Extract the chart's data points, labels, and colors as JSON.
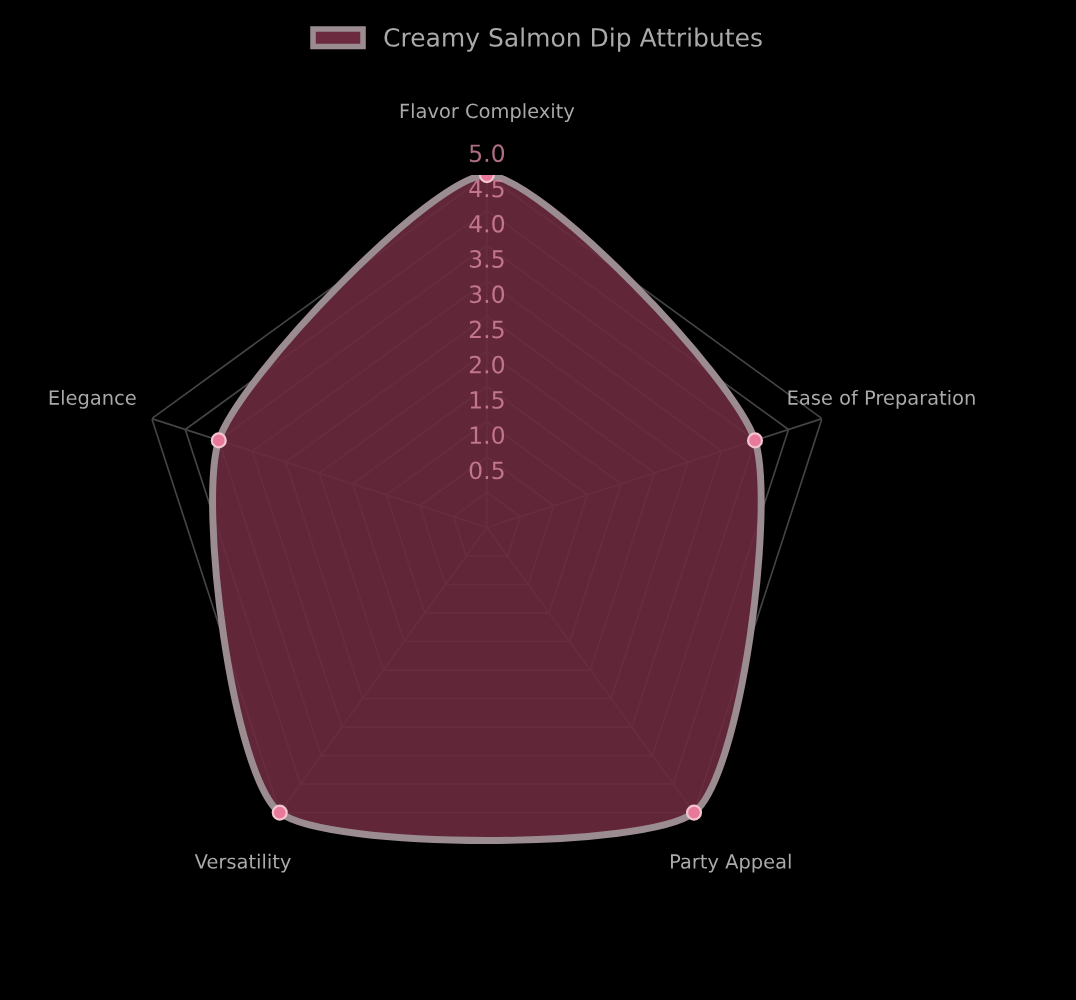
{
  "chart_data": {
    "type": "radar",
    "categories": [
      "Flavor Complexity",
      "Ease of Preparation",
      "Party Appeal",
      "Versatility",
      "Elegance"
    ],
    "series": [
      {
        "name": "Creamy Salmon Dip Attributes",
        "color": "#6b2a3d",
        "values": [
          5,
          4,
          5,
          5,
          4
        ]
      }
    ],
    "ylim": [
      0,
      5
    ],
    "yticks": [
      0.5,
      {
        "value": 1,
        "label": "1.0"
      },
      1.5,
      {
        "value": 2,
        "label": "2.0"
      },
      2.5,
      {
        "value": 3,
        "label": "3.0"
      },
      3.5,
      {
        "value": 4,
        "label": "4.0"
      },
      4.5,
      {
        "value": 5,
        "label": "5.0"
      }
    ],
    "grid": true,
    "legend": "top",
    "marker": "circle"
  }
}
